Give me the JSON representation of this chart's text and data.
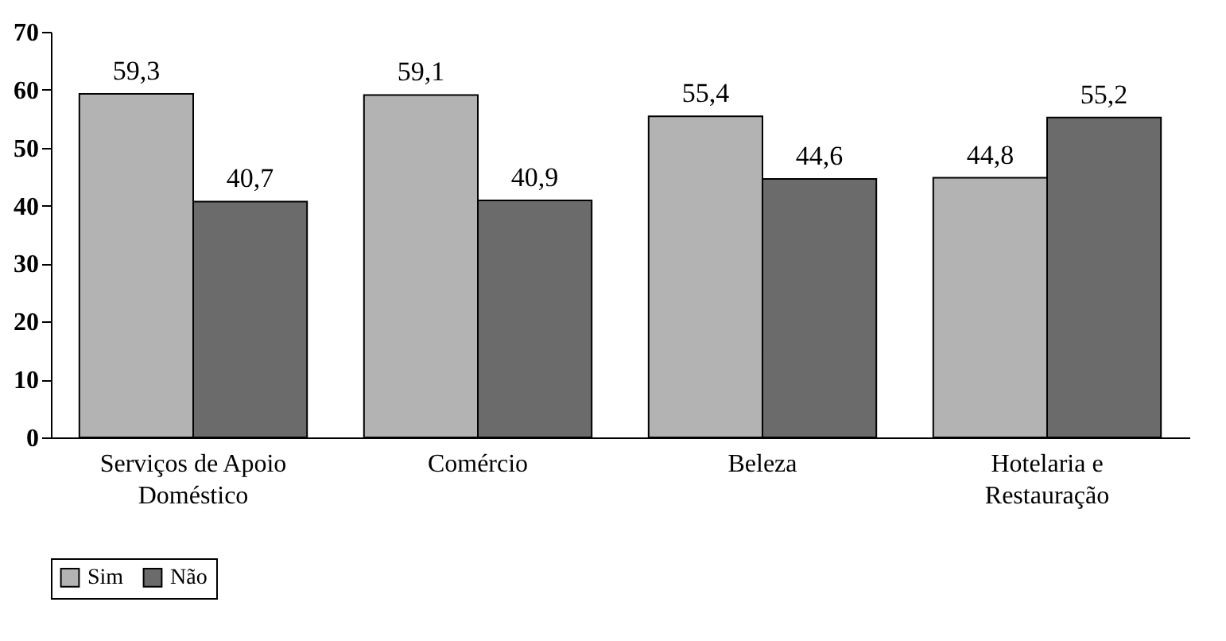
{
  "chart_data": {
    "type": "bar",
    "categories": [
      "Serviços de Apoio Doméstico",
      "Comércio",
      "Beleza",
      "Hotelaria e Restauração"
    ],
    "series": [
      {
        "name": "Sim",
        "color": "#b3b3b3",
        "values": [
          59.3,
          59.1,
          55.4,
          44.8
        ],
        "value_labels": [
          "59,3",
          "59,1",
          "55,4",
          "44,8"
        ]
      },
      {
        "name": "Não",
        "color": "#6b6b6b",
        "values": [
          40.7,
          40.9,
          44.6,
          55.2
        ],
        "value_labels": [
          "40,7",
          "40,9",
          "44,6",
          "55,2"
        ]
      }
    ],
    "ylim": [
      0,
      70
    ],
    "yticks": [
      0,
      10,
      20,
      30,
      40,
      50,
      60,
      70
    ],
    "legend": "bottom"
  }
}
